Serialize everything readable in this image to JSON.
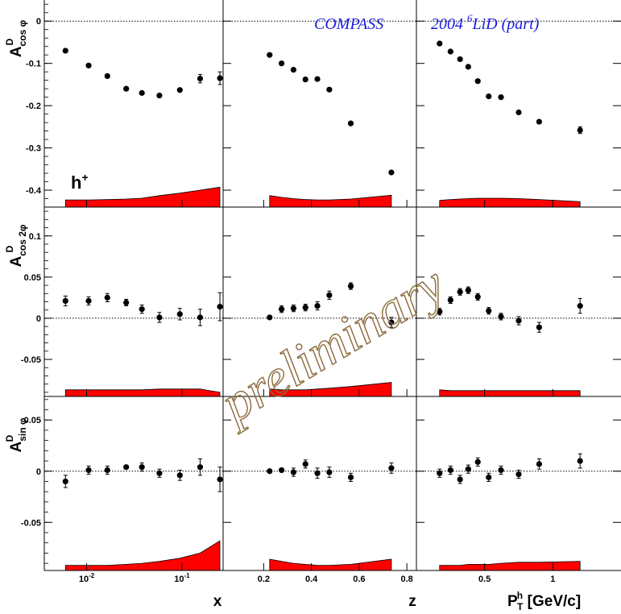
{
  "chart_data": {
    "type": "scatter",
    "experiment": "COMPASS",
    "dataset": "2004",
    "dataset_sup": "6",
    "dataset_rest": "LiD (part)",
    "watermark": "preliminary",
    "hadron": "h",
    "hadron_sup": "+",
    "rows": [
      {
        "label_main": "A",
        "label_sup": "D",
        "label_sub": "cos φ",
        "ylim": [
          -0.44,
          0.05
        ],
        "ticks": [
          {
            "v": 0,
            "t": "0"
          },
          {
            "v": -0.1,
            "t": "-0.1"
          },
          {
            "v": -0.2,
            "t": "-0.2"
          },
          {
            "v": -0.3,
            "t": "-0.3"
          },
          {
            "v": -0.4,
            "t": "-0.4"
          }
        ],
        "syst_scale": 1.0
      },
      {
        "label_main": "A",
        "label_sup": "D",
        "label_sub": "cos 2φ",
        "ylim": [
          -0.095,
          0.135
        ],
        "ticks": [
          {
            "v": 0.1,
            "t": "0.1"
          },
          {
            "v": 0.05,
            "t": "0.05"
          },
          {
            "v": 0,
            "t": "0"
          },
          {
            "v": -0.05,
            "t": "-0.05"
          }
        ],
        "syst_scale": 1.0
      },
      {
        "label_main": "A",
        "label_sup": "D",
        "label_sub": "sin φ",
        "ylim": [
          -0.097,
          0.073
        ],
        "ticks": [
          {
            "v": 0.05,
            "t": "0.05"
          },
          {
            "v": 0,
            "t": "0"
          },
          {
            "v": -0.05,
            "t": "-0.05"
          }
        ],
        "syst_scale": 1.0
      }
    ],
    "columns": [
      {
        "variable": "x",
        "xlabel": "x",
        "scale": "log",
        "xlim": [
          0.0036,
          0.27
        ],
        "ticks": [
          {
            "v": 0.01,
            "t": "10",
            "sup": "-2"
          },
          {
            "v": 0.1,
            "t": "10",
            "sup": "-1"
          }
        ]
      },
      {
        "variable": "z",
        "xlabel": "z",
        "scale": "linear",
        "xlim": [
          0.03,
          0.84
        ],
        "ticks": [
          {
            "v": 0.2,
            "t": "0.2"
          },
          {
            "v": 0.4,
            "t": "0.4"
          },
          {
            "v": 0.6,
            "t": "0.6"
          },
          {
            "v": 0.8,
            "t": "0.8"
          }
        ]
      },
      {
        "variable": "P_T^h",
        "xlabel": "P",
        "xlabel_sup": "h",
        "xlabel_sub": "T",
        "xlabel_rest": " [GeV/c]",
        "scale": "linear",
        "xlim": [
          0.0,
          1.5
        ],
        "ticks": [
          {
            "v": 0.5,
            "t": "0.5"
          },
          {
            "v": 1.0,
            "t": "1"
          }
        ]
      }
    ],
    "panels": [
      {
        "row": 0,
        "col": 0,
        "x": [
          0.006,
          0.0105,
          0.0165,
          0.026,
          0.038,
          0.058,
          0.095,
          0.155,
          0.25
        ],
        "y": [
          -0.07,
          -0.105,
          -0.13,
          -0.16,
          -0.17,
          -0.176,
          -0.163,
          -0.136,
          -0.135
        ],
        "err": [
          0.005,
          0.004,
          0.004,
          0.004,
          0.004,
          0.005,
          0.006,
          0.01,
          0.015
        ],
        "syst": [
          0.017,
          0.017,
          0.018,
          0.019,
          0.021,
          0.027,
          0.033,
          0.04,
          0.047
        ]
      },
      {
        "row": 0,
        "col": 1,
        "x": [
          0.225,
          0.275,
          0.325,
          0.375,
          0.425,
          0.475,
          0.565,
          0.735
        ],
        "y": [
          -0.08,
          -0.1,
          -0.115,
          -0.138,
          -0.137,
          -0.162,
          -0.242,
          -0.358
        ],
        "err": [
          0.003,
          0.003,
          0.003,
          0.004,
          0.005,
          0.005,
          0.005,
          0.007
        ],
        "syst": [
          0.027,
          0.023,
          0.02,
          0.018,
          0.017,
          0.017,
          0.019,
          0.028
        ]
      },
      {
        "row": 0,
        "col": 2,
        "x": [
          0.17,
          0.25,
          0.32,
          0.38,
          0.45,
          0.53,
          0.62,
          0.75,
          0.9,
          1.2
        ],
        "y": [
          -0.053,
          -0.072,
          -0.09,
          -0.108,
          -0.142,
          -0.178,
          -0.18,
          -0.216,
          -0.238,
          -0.258
        ],
        "err": [
          0.003,
          0.003,
          0.003,
          0.003,
          0.003,
          0.004,
          0.004,
          0.004,
          0.005,
          0.008
        ],
        "syst": [
          0.016,
          0.018,
          0.019,
          0.02,
          0.021,
          0.021,
          0.021,
          0.02,
          0.018,
          0.013
        ]
      },
      {
        "row": 1,
        "col": 0,
        "x": [
          0.006,
          0.0105,
          0.0165,
          0.026,
          0.038,
          0.058,
          0.095,
          0.155,
          0.25
        ],
        "y": [
          0.021,
          0.021,
          0.025,
          0.019,
          0.011,
          0.001,
          0.005,
          0.001,
          0.014
        ],
        "err": [
          0.006,
          0.005,
          0.005,
          0.004,
          0.005,
          0.006,
          0.007,
          0.01,
          0.017
        ],
        "syst": [
          0.008,
          0.008,
          0.008,
          0.008,
          0.008,
          0.009,
          0.009,
          0.009,
          0.005
        ]
      },
      {
        "row": 1,
        "col": 1,
        "x": [
          0.225,
          0.275,
          0.325,
          0.375,
          0.425,
          0.475,
          0.565,
          0.735
        ],
        "y": [
          0.001,
          0.011,
          0.012,
          0.013,
          0.015,
          0.028,
          0.039,
          -0.005
        ],
        "err": [
          0.003,
          0.004,
          0.004,
          0.004,
          0.005,
          0.005,
          0.004,
          0.006
        ],
        "syst": [
          0.009,
          0.008,
          0.008,
          0.008,
          0.009,
          0.01,
          0.012,
          0.017
        ]
      },
      {
        "row": 1,
        "col": 2,
        "x": [
          0.17,
          0.25,
          0.32,
          0.38,
          0.45,
          0.53,
          0.62,
          0.75,
          0.9,
          1.2
        ],
        "y": [
          0.008,
          0.022,
          0.032,
          0.034,
          0.026,
          0.009,
          0.002,
          -0.003,
          -0.011,
          0.015
        ],
        "err": [
          0.004,
          0.004,
          0.004,
          0.004,
          0.004,
          0.004,
          0.004,
          0.005,
          0.006,
          0.009
        ],
        "syst": [
          0.008,
          0.007,
          0.007,
          0.007,
          0.007,
          0.007,
          0.007,
          0.007,
          0.007,
          0.007
        ]
      },
      {
        "row": 2,
        "col": 0,
        "x": [
          0.006,
          0.0105,
          0.0165,
          0.026,
          0.038,
          0.058,
          0.095,
          0.155,
          0.25
        ],
        "y": [
          -0.01,
          0.001,
          0.001,
          0.004,
          0.004,
          -0.002,
          -0.004,
          0.004,
          -0.008
        ],
        "err": [
          0.006,
          0.004,
          0.004,
          0.003,
          0.004,
          0.004,
          0.005,
          0.008,
          0.012
        ],
        "syst": [
          0.005,
          0.005,
          0.005,
          0.006,
          0.007,
          0.009,
          0.012,
          0.017,
          0.029
        ]
      },
      {
        "row": 2,
        "col": 1,
        "x": [
          0.225,
          0.275,
          0.325,
          0.375,
          0.425,
          0.475,
          0.565,
          0.735
        ],
        "y": [
          0.0,
          0.001,
          -0.001,
          0.007,
          -0.002,
          -0.001,
          -0.006,
          0.003
        ],
        "err": [
          0.003,
          0.003,
          0.004,
          0.004,
          0.005,
          0.005,
          0.004,
          0.005
        ],
        "syst": [
          0.011,
          0.009,
          0.007,
          0.006,
          0.005,
          0.005,
          0.006,
          0.011
        ]
      },
      {
        "row": 2,
        "col": 2,
        "x": [
          0.17,
          0.25,
          0.32,
          0.38,
          0.45,
          0.53,
          0.62,
          0.75,
          0.9,
          1.2
        ],
        "y": [
          -0.002,
          0.001,
          -0.008,
          0.002,
          0.009,
          -0.006,
          0.001,
          -0.003,
          0.007,
          0.01
        ],
        "err": [
          0.004,
          0.004,
          0.004,
          0.004,
          0.004,
          0.004,
          0.004,
          0.004,
          0.005,
          0.007
        ],
        "syst": [
          0.005,
          0.005,
          0.005,
          0.006,
          0.006,
          0.006,
          0.007,
          0.008,
          0.008,
          0.009
        ]
      }
    ]
  }
}
